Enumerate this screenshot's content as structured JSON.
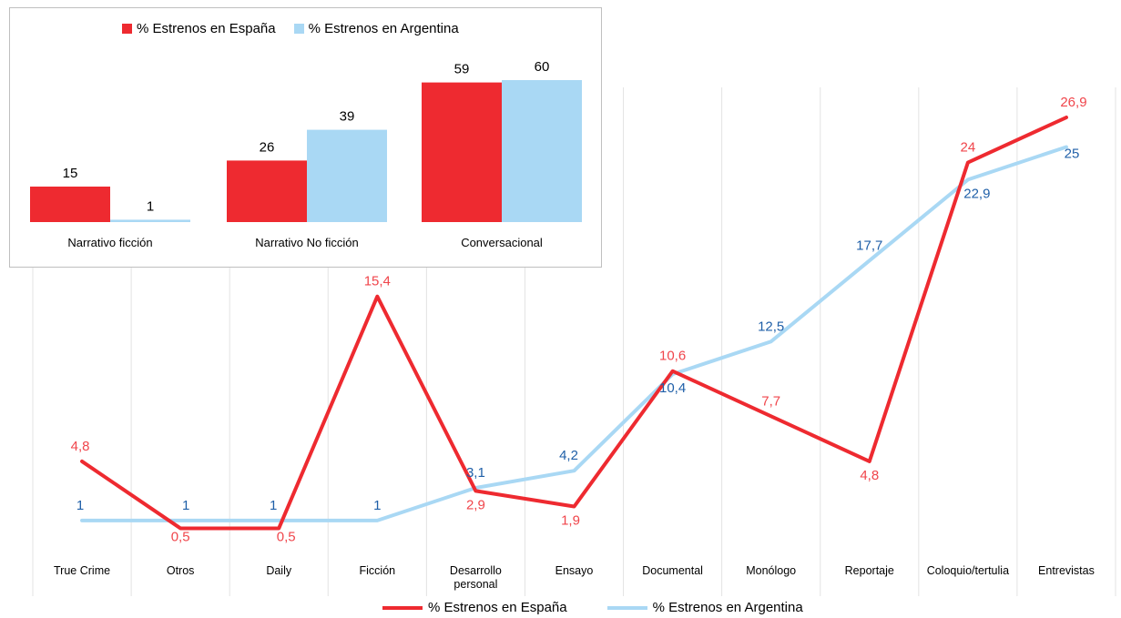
{
  "colors": {
    "spain": "#ee2a30",
    "argentina": "#a9d8f4",
    "spain_label": "#f0454b",
    "argentina_label": "#1f5fa8"
  },
  "legend": {
    "spain": "% Estrenos en España",
    "argentina": "% Estrenos en Argentina"
  },
  "chart_data": [
    {
      "type": "line",
      "categories": [
        "True Crime",
        "Otros",
        "Daily",
        "Ficción",
        "Desarrollo personal",
        "Ensayo",
        "Documental",
        "Monólogo",
        "Reportaje",
        "Coloquio/tertulia",
        "Entrevistas"
      ],
      "category_lines": [
        [
          "True Crime"
        ],
        [
          "Otros"
        ],
        [
          "Daily"
        ],
        [
          "Ficción"
        ],
        [
          "Desarrollo",
          "personal"
        ],
        [
          "Ensayo"
        ],
        [
          "Documental"
        ],
        [
          "Monólogo"
        ],
        [
          "Reportaje"
        ],
        [
          "Coloquio/tertulia"
        ],
        [
          "Entrevistas"
        ]
      ],
      "series": [
        {
          "name": "% Estrenos en España",
          "values": [
            4.8,
            0.5,
            0.5,
            15.4,
            2.9,
            1.9,
            10.6,
            7.7,
            4.8,
            24,
            26.9
          ],
          "labels": [
            "4,8",
            "0,5",
            "0,5",
            "15,4",
            "2,9",
            "1,9",
            "10,6",
            "7,7",
            "4,8",
            "24",
            "26,9"
          ]
        },
        {
          "name": "% Estrenos en Argentina",
          "values": [
            1,
            1,
            1,
            1,
            3.1,
            4.2,
            10.4,
            12.5,
            17.7,
            22.9,
            25
          ],
          "labels": [
            "1",
            "1",
            "1",
            "1",
            "3,1",
            "4,2",
            "10,4",
            "12,5",
            "17,7",
            "22,9",
            "25"
          ]
        }
      ],
      "ylim": [
        0,
        28
      ],
      "grid": "vertical",
      "legend_position": "bottom"
    },
    {
      "type": "bar",
      "categories": [
        "Narrativo ficción",
        "Narrativo No ficción",
        "Conversacional"
      ],
      "series": [
        {
          "name": "% Estrenos en España",
          "values": [
            15,
            26,
            59
          ]
        },
        {
          "name": "% Estrenos en Argentina",
          "values": [
            1,
            39,
            60
          ]
        }
      ],
      "ylim": [
        0,
        65
      ],
      "legend_position": "top"
    }
  ]
}
